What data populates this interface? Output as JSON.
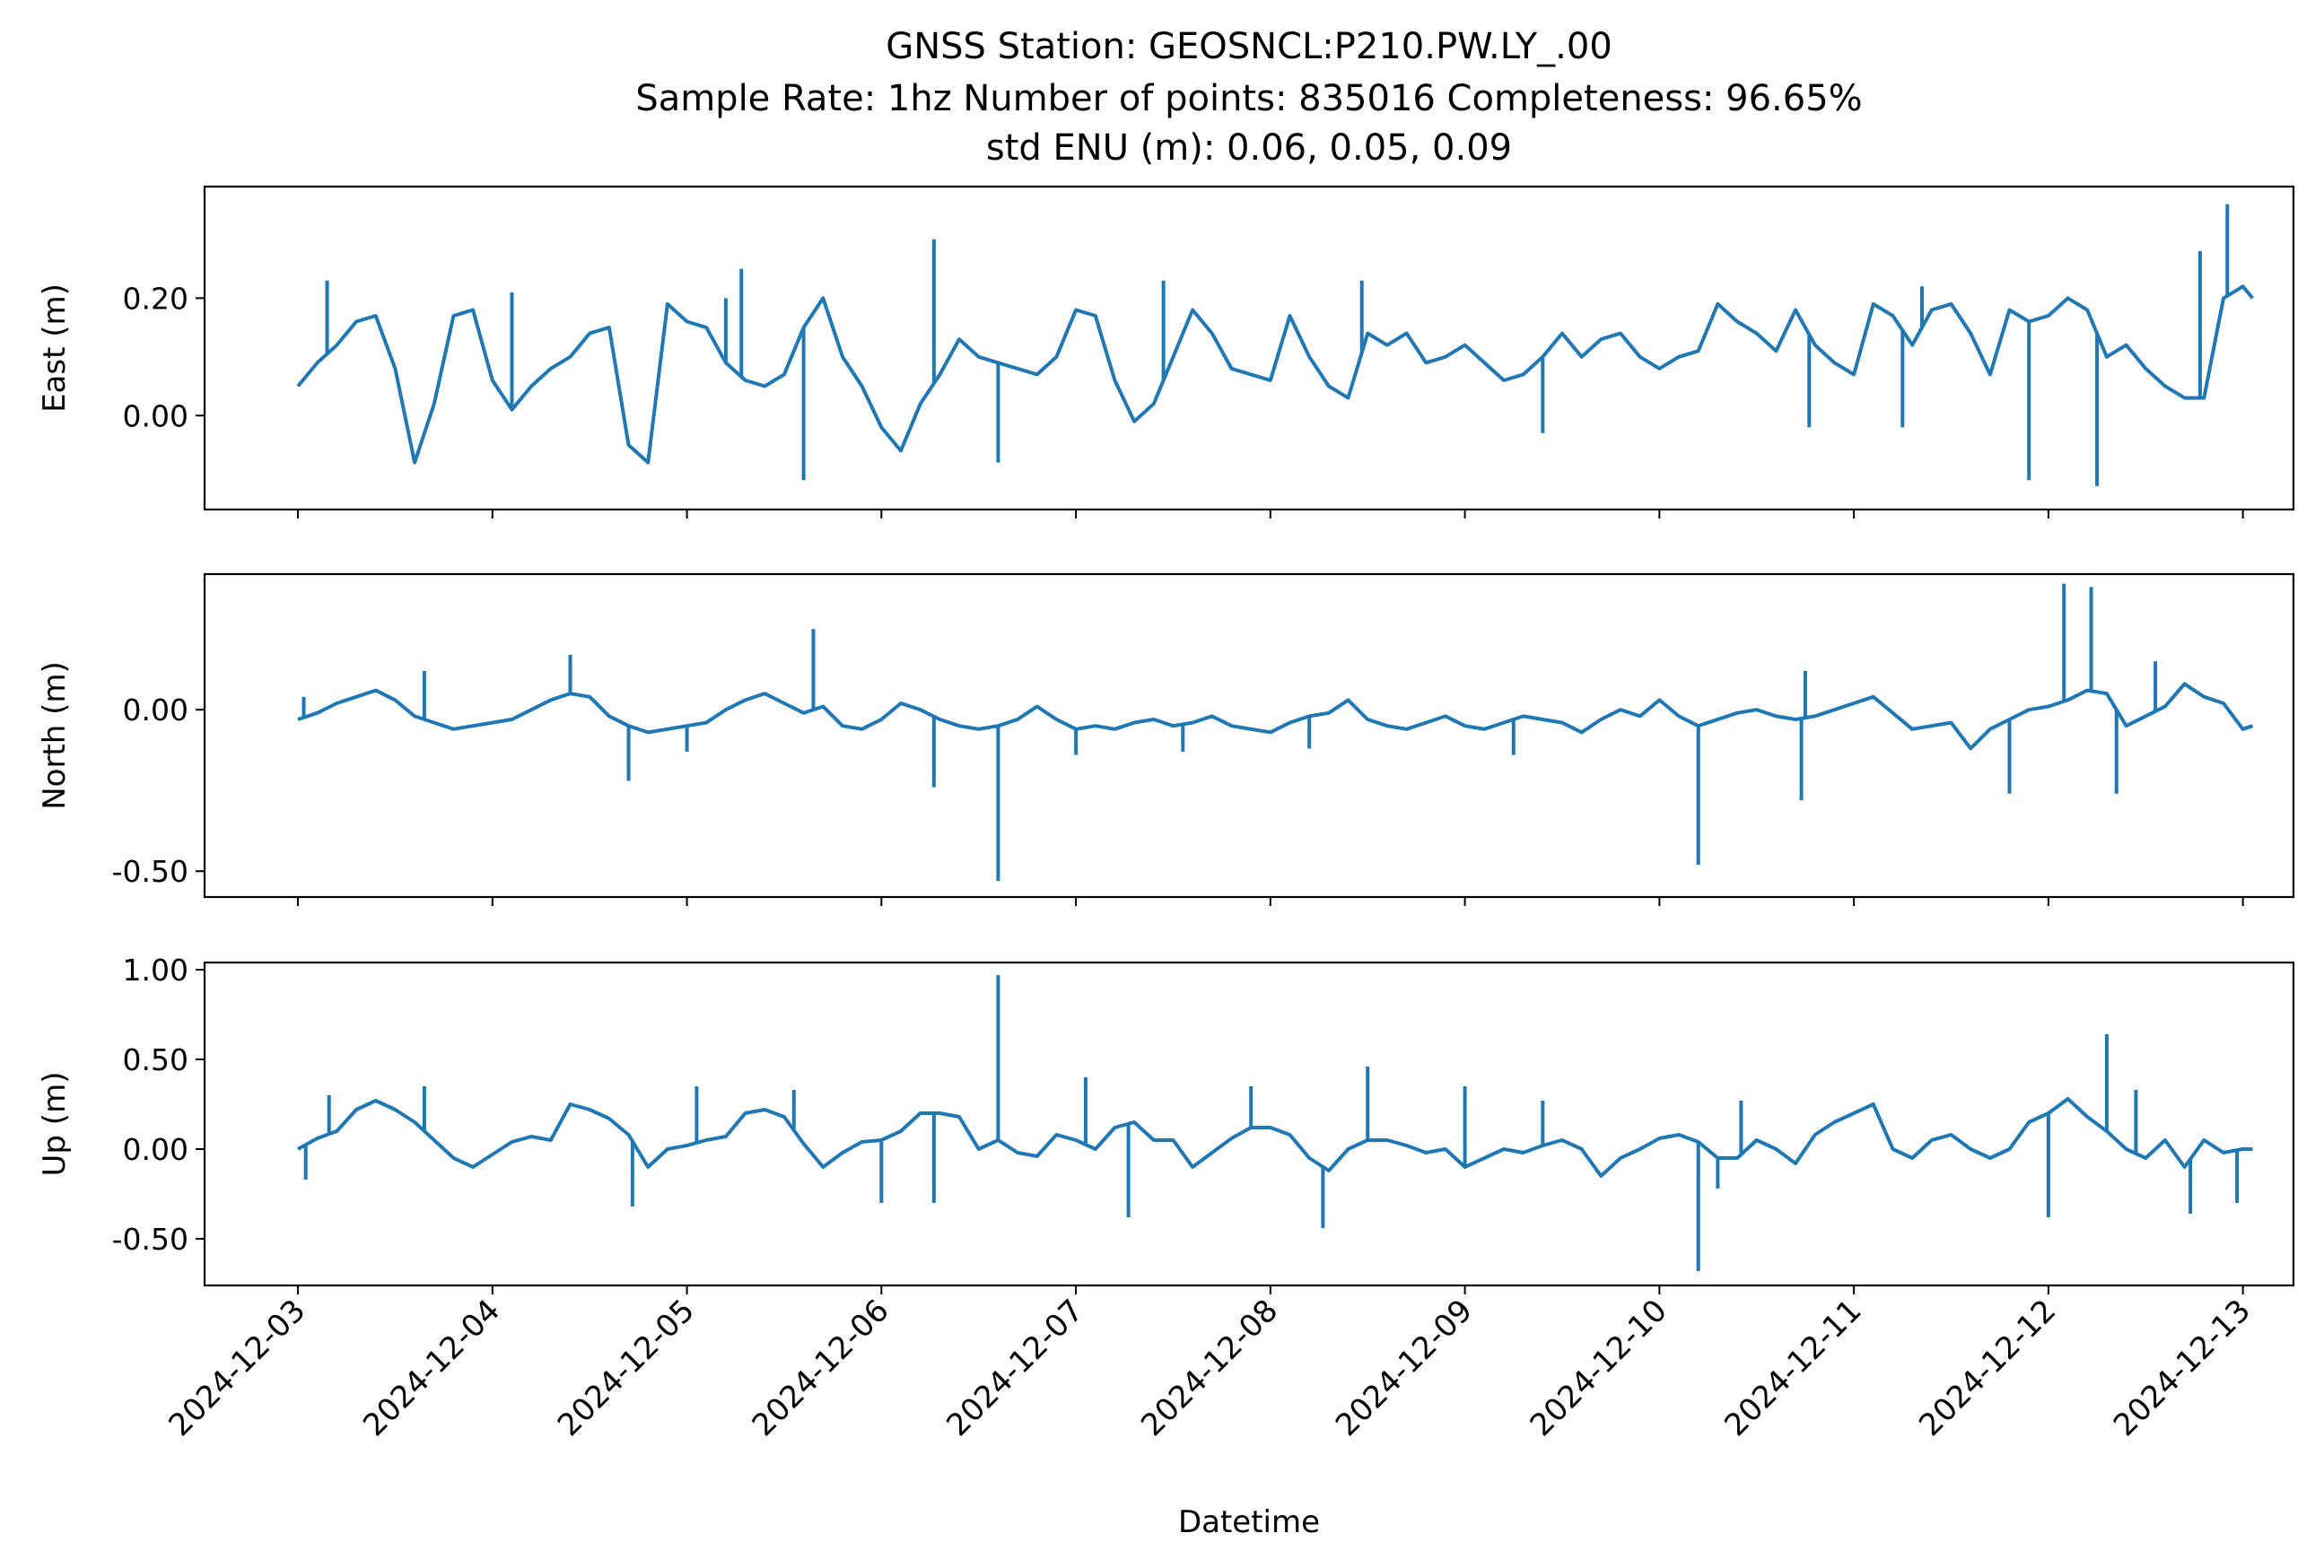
{
  "chart_data": {
    "type": "line",
    "title_lines": [
      "GNSS Station: GEOSNCL:P210.PW.LY_.00",
      "Sample Rate: 1hz   Number of points: 835016    Completeness:  96.65%",
      "std ENU (m):  0.06, 0.05, 0.09"
    ],
    "xlabel": "Datetime",
    "x_ticks": [
      "2024-12-03",
      "2024-12-04",
      "2024-12-05",
      "2024-12-06",
      "2024-12-07",
      "2024-12-08",
      "2024-12-09",
      "2024-12-10",
      "2024-12-11",
      "2024-12-12",
      "2024-12-13"
    ],
    "xlim_days": [
      -0.48,
      10.26
    ],
    "line_color": "#1f77b4",
    "panels": [
      {
        "ylabel": "East (m)",
        "ylim": [
          -0.16,
          0.39
        ],
        "yticks": [
          0.0,
          0.2
        ],
        "ytick_labels": [
          "0.00",
          "0.20"
        ],
        "x_days": [
          0.0,
          0.1,
          0.2,
          0.3,
          0.4,
          0.5,
          0.6,
          0.7,
          0.8,
          0.9,
          1.0,
          1.1,
          1.2,
          1.3,
          1.4,
          1.5,
          1.6,
          1.7,
          1.8,
          1.9,
          2.0,
          2.1,
          2.2,
          2.3,
          2.4,
          2.5,
          2.6,
          2.7,
          2.8,
          2.9,
          3.0,
          3.1,
          3.2,
          3.3,
          3.4,
          3.5,
          3.6,
          3.7,
          3.8,
          3.9,
          4.0,
          4.1,
          4.2,
          4.3,
          4.4,
          4.5,
          4.6,
          4.7,
          4.8,
          4.9,
          5.0,
          5.1,
          5.2,
          5.3,
          5.4,
          5.5,
          5.6,
          5.7,
          5.8,
          5.9,
          6.0,
          6.1,
          6.2,
          6.3,
          6.4,
          6.5,
          6.6,
          6.7,
          6.8,
          6.9,
          7.0,
          7.1,
          7.2,
          7.3,
          7.4,
          7.5,
          7.6,
          7.7,
          7.8,
          7.9,
          8.0,
          8.1,
          8.2,
          8.3,
          8.4,
          8.5,
          8.6,
          8.7,
          8.8,
          8.9,
          9.0,
          9.1,
          9.2,
          9.3,
          9.4,
          9.5,
          9.6,
          9.7,
          9.8,
          9.9,
          10.0,
          10.05
        ],
        "values": [
          0.05,
          0.09,
          0.12,
          0.16,
          0.17,
          0.08,
          -0.08,
          0.02,
          0.17,
          0.18,
          0.06,
          0.01,
          0.05,
          0.08,
          0.1,
          0.14,
          0.15,
          -0.05,
          -0.08,
          0.19,
          0.16,
          0.15,
          0.09,
          0.06,
          0.05,
          0.07,
          0.15,
          0.2,
          0.1,
          0.05,
          -0.02,
          -0.06,
          0.02,
          0.07,
          0.13,
          0.1,
          0.09,
          0.08,
          0.07,
          0.1,
          0.18,
          0.17,
          0.06,
          -0.01,
          0.02,
          0.1,
          0.18,
          0.14,
          0.08,
          0.07,
          0.06,
          0.17,
          0.1,
          0.05,
          0.03,
          0.14,
          0.12,
          0.14,
          0.09,
          0.1,
          0.12,
          0.09,
          0.06,
          0.07,
          0.1,
          0.14,
          0.1,
          0.13,
          0.14,
          0.1,
          0.08,
          0.1,
          0.11,
          0.19,
          0.16,
          0.14,
          0.11,
          0.18,
          0.12,
          0.09,
          0.07,
          0.19,
          0.17,
          0.12,
          0.18,
          0.19,
          0.14,
          0.07,
          0.18,
          0.16,
          0.17,
          0.2,
          0.18,
          0.1,
          0.12,
          0.08,
          0.05,
          0.03,
          0.03,
          0.2,
          0.22,
          0.2
        ],
        "spikes": [
          {
            "x": 0.15,
            "y": 0.23
          },
          {
            "x": 1.1,
            "y": 0.21
          },
          {
            "x": 2.2,
            "y": 0.2
          },
          {
            "x": 2.28,
            "y": 0.25
          },
          {
            "x": 2.6,
            "y": -0.11
          },
          {
            "x": 3.27,
            "y": 0.3
          },
          {
            "x": 3.6,
            "y": -0.08
          },
          {
            "x": 4.45,
            "y": 0.23
          },
          {
            "x": 5.47,
            "y": 0.23
          },
          {
            "x": 6.4,
            "y": -0.03
          },
          {
            "x": 7.77,
            "y": -0.02
          },
          {
            "x": 8.25,
            "y": -0.02
          },
          {
            "x": 8.35,
            "y": 0.22
          },
          {
            "x": 8.9,
            "y": -0.11
          },
          {
            "x": 9.25,
            "y": -0.12
          },
          {
            "x": 9.92,
            "y": 0.36
          },
          {
            "x": 9.78,
            "y": 0.28
          }
        ]
      },
      {
        "ylabel": "North (m)",
        "ylim": [
          -0.58,
          0.42
        ],
        "yticks": [
          0.0,
          -0.5
        ],
        "ytick_labels": [
          "0.00",
          "-0.50"
        ],
        "x_days": [
          0.0,
          0.1,
          0.2,
          0.3,
          0.4,
          0.5,
          0.6,
          0.7,
          0.8,
          0.9,
          1.0,
          1.1,
          1.2,
          1.3,
          1.4,
          1.5,
          1.6,
          1.7,
          1.8,
          1.9,
          2.0,
          2.1,
          2.2,
          2.3,
          2.4,
          2.5,
          2.6,
          2.7,
          2.8,
          2.9,
          3.0,
          3.1,
          3.2,
          3.3,
          3.4,
          3.5,
          3.6,
          3.7,
          3.8,
          3.9,
          4.0,
          4.1,
          4.2,
          4.3,
          4.4,
          4.5,
          4.6,
          4.7,
          4.8,
          4.9,
          5.0,
          5.1,
          5.2,
          5.3,
          5.4,
          5.5,
          5.6,
          5.7,
          5.8,
          5.9,
          6.0,
          6.1,
          6.2,
          6.3,
          6.4,
          6.5,
          6.6,
          6.7,
          6.8,
          6.9,
          7.0,
          7.1,
          7.2,
          7.3,
          7.4,
          7.5,
          7.6,
          7.7,
          7.8,
          7.9,
          8.0,
          8.1,
          8.2,
          8.3,
          8.4,
          8.5,
          8.6,
          8.7,
          8.8,
          8.9,
          9.0,
          9.1,
          9.2,
          9.3,
          9.4,
          9.5,
          9.6,
          9.7,
          9.8,
          9.9,
          10.0,
          10.05
        ],
        "values": [
          -0.03,
          -0.01,
          0.02,
          0.04,
          0.06,
          0.03,
          -0.02,
          -0.04,
          -0.06,
          -0.05,
          -0.04,
          -0.03,
          0.0,
          0.03,
          0.05,
          0.04,
          -0.02,
          -0.05,
          -0.07,
          -0.06,
          -0.05,
          -0.04,
          0.0,
          0.03,
          0.05,
          0.02,
          -0.01,
          0.01,
          -0.05,
          -0.06,
          -0.03,
          0.02,
          0.0,
          -0.03,
          -0.05,
          -0.06,
          -0.05,
          -0.03,
          0.01,
          -0.03,
          -0.06,
          -0.05,
          -0.06,
          -0.04,
          -0.03,
          -0.05,
          -0.04,
          -0.02,
          -0.05,
          -0.06,
          -0.07,
          -0.04,
          -0.02,
          -0.01,
          0.03,
          -0.03,
          -0.05,
          -0.06,
          -0.04,
          -0.02,
          -0.05,
          -0.06,
          -0.04,
          -0.02,
          -0.03,
          -0.04,
          -0.07,
          -0.03,
          0.0,
          -0.02,
          0.03,
          -0.02,
          -0.05,
          -0.03,
          -0.01,
          0.0,
          -0.02,
          -0.03,
          -0.02,
          0.0,
          0.02,
          0.04,
          -0.01,
          -0.06,
          -0.05,
          -0.04,
          -0.12,
          -0.06,
          -0.03,
          0.0,
          0.01,
          0.03,
          0.06,
          0.05,
          -0.05,
          -0.02,
          0.01,
          0.08,
          0.04,
          0.02,
          -0.06,
          -0.05
        ],
        "spikes": [
          {
            "x": 0.03,
            "y": 0.04
          },
          {
            "x": 0.65,
            "y": 0.12
          },
          {
            "x": 1.4,
            "y": 0.17
          },
          {
            "x": 1.7,
            "y": -0.22
          },
          {
            "x": 2.0,
            "y": -0.13
          },
          {
            "x": 2.65,
            "y": 0.25
          },
          {
            "x": 3.27,
            "y": -0.24
          },
          {
            "x": 3.6,
            "y": -0.53
          },
          {
            "x": 4.0,
            "y": -0.14
          },
          {
            "x": 4.55,
            "y": -0.13
          },
          {
            "x": 5.2,
            "y": -0.12
          },
          {
            "x": 6.25,
            "y": -0.14
          },
          {
            "x": 7.2,
            "y": -0.48
          },
          {
            "x": 7.73,
            "y": -0.28
          },
          {
            "x": 7.75,
            "y": 0.12
          },
          {
            "x": 8.8,
            "y": -0.26
          },
          {
            "x": 9.08,
            "y": 0.39
          },
          {
            "x": 9.22,
            "y": 0.38
          },
          {
            "x": 9.35,
            "y": -0.26
          },
          {
            "x": 9.55,
            "y": 0.15
          }
        ]
      },
      {
        "ylabel": "Up (m)",
        "ylim": [
          -0.76,
          1.04
        ],
        "yticks": [
          1.0,
          0.5,
          0.0,
          -0.5
        ],
        "ytick_labels": [
          "1.00",
          "0.50",
          "0.00",
          "-0.50"
        ],
        "x_days": [
          0.0,
          0.1,
          0.2,
          0.3,
          0.4,
          0.5,
          0.6,
          0.7,
          0.8,
          0.9,
          1.0,
          1.1,
          1.2,
          1.3,
          1.4,
          1.5,
          1.6,
          1.7,
          1.8,
          1.9,
          2.0,
          2.1,
          2.2,
          2.3,
          2.4,
          2.5,
          2.6,
          2.7,
          2.8,
          2.9,
          3.0,
          3.1,
          3.2,
          3.3,
          3.4,
          3.5,
          3.6,
          3.7,
          3.8,
          3.9,
          4.0,
          4.1,
          4.2,
          4.3,
          4.4,
          4.5,
          4.6,
          4.7,
          4.8,
          4.9,
          5.0,
          5.1,
          5.2,
          5.3,
          5.4,
          5.5,
          5.6,
          5.7,
          5.8,
          5.9,
          6.0,
          6.1,
          6.2,
          6.3,
          6.4,
          6.5,
          6.6,
          6.7,
          6.8,
          6.9,
          7.0,
          7.1,
          7.2,
          7.3,
          7.4,
          7.5,
          7.6,
          7.7,
          7.8,
          7.9,
          8.0,
          8.1,
          8.2,
          8.3,
          8.4,
          8.5,
          8.6,
          8.7,
          8.8,
          8.9,
          9.0,
          9.1,
          9.2,
          9.3,
          9.4,
          9.5,
          9.6,
          9.7,
          9.8,
          9.9,
          10.0,
          10.05
        ],
        "values": [
          0.0,
          0.06,
          0.1,
          0.22,
          0.27,
          0.22,
          0.15,
          0.05,
          -0.05,
          -0.1,
          -0.03,
          0.04,
          0.07,
          0.05,
          0.25,
          0.22,
          0.17,
          0.08,
          -0.1,
          0.0,
          0.02,
          0.05,
          0.07,
          0.2,
          0.22,
          0.18,
          0.03,
          -0.1,
          -0.02,
          0.04,
          0.05,
          0.1,
          0.2,
          0.2,
          0.18,
          0.0,
          0.05,
          -0.02,
          -0.04,
          0.08,
          0.05,
          0.0,
          0.12,
          0.15,
          0.05,
          0.05,
          -0.1,
          -0.02,
          0.06,
          0.12,
          0.12,
          0.08,
          -0.05,
          -0.12,
          0.0,
          0.05,
          0.05,
          0.02,
          -0.02,
          0.0,
          -0.1,
          -0.05,
          0.0,
          -0.02,
          0.02,
          0.05,
          0.0,
          -0.15,
          -0.05,
          0.0,
          0.06,
          0.08,
          0.04,
          -0.05,
          -0.05,
          0.05,
          0.0,
          -0.08,
          0.08,
          0.15,
          0.2,
          0.25,
          0.0,
          -0.05,
          0.05,
          0.08,
          0.0,
          -0.05,
          0.0,
          0.15,
          0.2,
          0.28,
          0.18,
          0.1,
          0.0,
          -0.05,
          0.05,
          -0.1,
          0.05,
          -0.02,
          0.0,
          0.0
        ],
        "spikes": [
          {
            "x": 0.04,
            "y": -0.17
          },
          {
            "x": 0.16,
            "y": 0.3
          },
          {
            "x": 0.65,
            "y": 0.35
          },
          {
            "x": 1.72,
            "y": -0.32
          },
          {
            "x": 2.05,
            "y": 0.35
          },
          {
            "x": 2.55,
            "y": 0.33
          },
          {
            "x": 3.0,
            "y": -0.3
          },
          {
            "x": 3.27,
            "y": -0.3
          },
          {
            "x": 3.6,
            "y": 0.97
          },
          {
            "x": 4.05,
            "y": 0.4
          },
          {
            "x": 4.27,
            "y": -0.38
          },
          {
            "x": 4.9,
            "y": 0.35
          },
          {
            "x": 5.27,
            "y": -0.44
          },
          {
            "x": 5.5,
            "y": 0.46
          },
          {
            "x": 6.0,
            "y": 0.35
          },
          {
            "x": 6.4,
            "y": 0.27
          },
          {
            "x": 7.2,
            "y": -0.68
          },
          {
            "x": 7.42,
            "y": 0.27
          },
          {
            "x": 7.3,
            "y": -0.22
          },
          {
            "x": 9.0,
            "y": -0.38
          },
          {
            "x": 9.3,
            "y": 0.64
          },
          {
            "x": 9.45,
            "y": 0.33
          },
          {
            "x": 9.97,
            "y": -0.3
          },
          {
            "x": 9.73,
            "y": -0.36
          }
        ]
      }
    ]
  }
}
